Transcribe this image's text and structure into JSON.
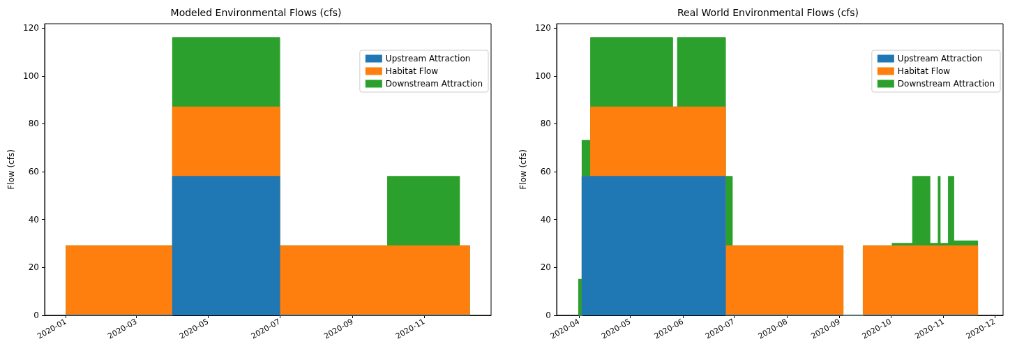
{
  "chart_data": [
    {
      "type": "area",
      "title": "Modeled Environmental Flows (cfs)",
      "ylabel": "Flow (cfs)",
      "stacked": true,
      "legend": "top right",
      "x": [
        "2020-01-01",
        "2020-04-01",
        "2020-04-01",
        "2020-07-01",
        "2020-07-01",
        "2020-10-01",
        "2020-10-01",
        "2020-12-01",
        "2020-12-01",
        "2020-12-10"
      ],
      "series": [
        {
          "name": "Upstream Attraction",
          "color": "#1f77b4",
          "values": [
            0,
            0,
            58,
            58,
            0,
            0,
            0,
            0,
            0,
            0
          ]
        },
        {
          "name": "Habitat Flow",
          "color": "#ff7f0e",
          "values": [
            29,
            29,
            29,
            29,
            29,
            29,
            29,
            29,
            29,
            29
          ]
        },
        {
          "name": "Downstream Attraction",
          "color": "#2ca02c",
          "values": [
            0,
            0,
            29,
            29,
            0,
            0,
            29,
            29,
            0,
            0
          ]
        }
      ],
      "xlim": [
        "2019-12-14",
        "2020-12-28"
      ],
      "xticks": [
        "2020-01",
        "2020-03",
        "2020-05",
        "2020-07",
        "2020-09",
        "2020-11"
      ],
      "ylim": [
        0,
        121.8
      ],
      "yticks": [
        0,
        20,
        40,
        60,
        80,
        100,
        120
      ]
    },
    {
      "type": "area",
      "title": "Real World Environmental Flows (cfs)",
      "ylabel": "Flow (cfs)",
      "stacked": true,
      "legend": "top right",
      "x": [
        "2020-04-01",
        "2020-04-01",
        "2020-04-03",
        "2020-04-03",
        "2020-04-08",
        "2020-04-08",
        "2020-05-26",
        "2020-05-26",
        "2020-05-29",
        "2020-05-29",
        "2020-06-26",
        "2020-06-26",
        "2020-06-30",
        "2020-06-30",
        "2020-09-03",
        "2020-09-03",
        "2020-09-15",
        "2020-09-15",
        "2020-10-02",
        "2020-10-02",
        "2020-10-14",
        "2020-10-14",
        "2020-10-24",
        "2020-10-24",
        "2020-10-29",
        "2020-10-29",
        "2020-10-30",
        "2020-10-30",
        "2020-11-04",
        "2020-11-04",
        "2020-11-07",
        "2020-11-07",
        "2020-11-21",
        "2020-11-21"
      ],
      "series": [
        {
          "name": "Upstream Attraction",
          "color": "#1f77b4",
          "values": [
            0,
            0,
            0,
            58,
            58,
            58,
            58,
            58,
            58,
            58,
            58,
            0,
            0,
            0,
            0,
            0,
            0,
            0,
            0,
            0,
            0,
            0,
            0,
            0,
            0,
            0,
            0,
            0,
            0,
            0,
            0,
            0,
            0,
            0
          ]
        },
        {
          "name": "Habitat Flow",
          "color": "#ff7f0e",
          "values": [
            0,
            0,
            0,
            0,
            0,
            29,
            29,
            29,
            29,
            29,
            29,
            29,
            29,
            29,
            29,
            0,
            0,
            29,
            29,
            29,
            29,
            29,
            29,
            29,
            29,
            29,
            29,
            29,
            29,
            29,
            29,
            29,
            29,
            0
          ]
        },
        {
          "name": "Downstream Attraction",
          "color": "#2ca02c",
          "values": [
            0,
            15,
            15,
            15,
            15,
            29,
            29,
            0,
            0,
            29,
            29,
            29,
            29,
            0,
            0,
            0,
            0,
            0,
            0,
            1,
            1,
            29,
            29,
            1,
            1,
            29,
            29,
            1,
            1,
            29,
            29,
            2,
            2,
            0
          ]
        }
      ],
      "xlim": [
        "2020-03-19",
        "2020-12-06"
      ],
      "xticks": [
        "2020-04",
        "2020-05",
        "2020-06",
        "2020-07",
        "2020-08",
        "2020-09",
        "2020-10",
        "2020-11",
        "2020-12"
      ],
      "ylim": [
        0,
        121.8
      ],
      "yticks": [
        0,
        20,
        40,
        60,
        80,
        100,
        120
      ]
    }
  ]
}
